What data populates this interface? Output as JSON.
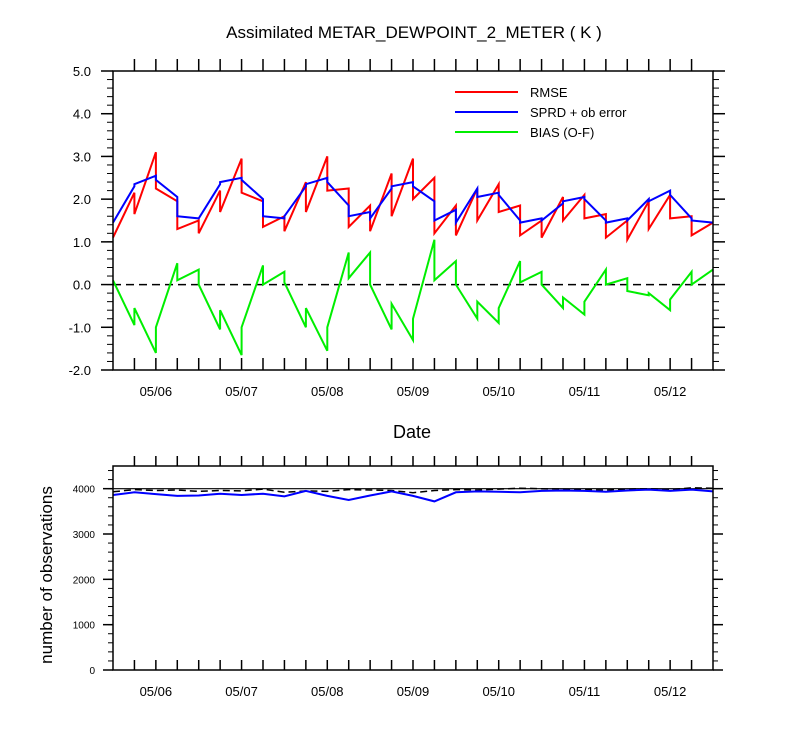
{
  "chart_data": [
    {
      "type": "line",
      "title": "Assimilated METAR_DEWPOINT_2_METER ( K )",
      "xlabel": "Date",
      "ylabel": "",
      "xticklabels": [
        "05/06",
        "05/07",
        "05/08",
        "05/09",
        "05/10",
        "05/11",
        "05/12"
      ],
      "yticklabels": [
        "-2.0",
        "-1.0",
        "0.0",
        "1.0",
        "2.0",
        "3.0",
        "4.0",
        "5.0"
      ],
      "ylim": [
        -2.0,
        5.0
      ],
      "xlim": [
        5.5,
        12.5
      ],
      "legend_position": "top-right",
      "reference_line": {
        "y": 0.0,
        "style": "dashed"
      },
      "series": [
        {
          "name": "RMSE",
          "color": "#ff0000",
          "x": [
            5.5,
            5.75,
            5.75,
            6.0,
            6.0,
            6.25,
            6.25,
            6.5,
            6.5,
            6.75,
            6.75,
            7.0,
            7.0,
            7.25,
            7.25,
            7.5,
            7.5,
            7.75,
            7.75,
            8.0,
            8.0,
            8.25,
            8.25,
            8.5,
            8.5,
            8.75,
            8.75,
            9.0,
            9.0,
            9.25,
            9.25,
            9.5,
            9.5,
            9.75,
            9.75,
            10.0,
            10.0,
            10.25,
            10.25,
            10.5,
            10.5,
            10.75,
            10.75,
            11.0,
            11.0,
            11.25,
            11.25,
            11.5,
            11.5,
            11.75,
            11.75,
            12.0,
            12.0,
            12.25,
            12.25,
            12.5
          ],
          "y": [
            1.1,
            2.15,
            1.65,
            3.1,
            2.25,
            1.95,
            1.3,
            1.5,
            1.2,
            2.2,
            1.7,
            2.95,
            2.15,
            1.95,
            1.35,
            1.6,
            1.25,
            2.4,
            1.7,
            3.0,
            2.2,
            2.25,
            1.35,
            1.85,
            1.25,
            2.6,
            1.6,
            2.95,
            2.0,
            2.5,
            1.2,
            1.85,
            1.15,
            2.25,
            1.5,
            2.35,
            1.7,
            1.85,
            1.15,
            1.5,
            1.1,
            2.05,
            1.5,
            2.1,
            1.55,
            1.65,
            1.1,
            1.5,
            1.05,
            1.95,
            1.3,
            2.1,
            1.55,
            1.6,
            1.15,
            1.45
          ]
        },
        {
          "name": "SPRD + ob error",
          "color": "#0000ff",
          "x": [
            5.5,
            5.75,
            5.75,
            6.0,
            6.0,
            6.25,
            6.25,
            6.5,
            6.5,
            6.75,
            6.75,
            7.0,
            7.0,
            7.25,
            7.25,
            7.5,
            7.5,
            7.75,
            7.75,
            8.0,
            8.0,
            8.25,
            8.25,
            8.5,
            8.5,
            8.75,
            8.75,
            9.0,
            9.0,
            9.25,
            9.25,
            9.5,
            9.5,
            9.75,
            9.75,
            10.0,
            10.0,
            10.25,
            10.25,
            10.5,
            10.5,
            10.75,
            10.75,
            11.0,
            11.0,
            11.25,
            11.25,
            11.5,
            11.5,
            11.75,
            11.75,
            12.0,
            12.0,
            12.25,
            12.25,
            12.5
          ],
          "y": [
            1.45,
            2.3,
            2.35,
            2.55,
            2.45,
            2.05,
            1.6,
            1.55,
            1.55,
            2.35,
            2.4,
            2.5,
            2.45,
            2.0,
            1.6,
            1.55,
            1.6,
            2.3,
            2.35,
            2.5,
            2.4,
            1.85,
            1.6,
            1.7,
            1.55,
            2.25,
            2.3,
            2.4,
            2.3,
            1.95,
            1.5,
            1.75,
            1.45,
            2.25,
            2.05,
            2.15,
            2.1,
            1.5,
            1.45,
            1.55,
            1.5,
            1.9,
            1.95,
            2.05,
            2.0,
            1.5,
            1.45,
            1.55,
            1.5,
            2.0,
            1.95,
            2.2,
            2.1,
            1.55,
            1.5,
            1.45
          ]
        },
        {
          "name": "BIAS (O-F)",
          "color": "#00ee00",
          "x": [
            5.5,
            5.75,
            5.75,
            6.0,
            6.0,
            6.25,
            6.25,
            6.5,
            6.5,
            6.75,
            6.75,
            7.0,
            7.0,
            7.25,
            7.25,
            7.5,
            7.5,
            7.75,
            7.75,
            8.0,
            8.0,
            8.25,
            8.25,
            8.5,
            8.5,
            8.75,
            8.75,
            9.0,
            9.0,
            9.25,
            9.25,
            9.5,
            9.5,
            9.75,
            9.75,
            10.0,
            10.0,
            10.25,
            10.25,
            10.5,
            10.5,
            10.75,
            10.75,
            11.0,
            11.0,
            11.25,
            11.25,
            11.5,
            11.5,
            11.75,
            11.75,
            12.0,
            12.0,
            12.25,
            12.25,
            12.5
          ],
          "y": [
            0.1,
            -0.95,
            -0.55,
            -1.6,
            -1.0,
            0.5,
            0.1,
            0.35,
            0.0,
            -1.05,
            -0.6,
            -1.65,
            -1.0,
            0.45,
            0.0,
            0.3,
            0.05,
            -1.0,
            -0.55,
            -1.55,
            -1.0,
            0.75,
            0.15,
            0.75,
            0.0,
            -1.05,
            -0.45,
            -1.3,
            -0.8,
            1.05,
            0.1,
            0.55,
            0.0,
            -0.8,
            -0.4,
            -0.9,
            -0.55,
            0.55,
            0.05,
            0.3,
            0.0,
            -0.55,
            -0.3,
            -0.7,
            -0.4,
            0.35,
            0.0,
            0.15,
            -0.15,
            -0.25,
            -0.2,
            -0.6,
            -0.35,
            0.3,
            0.0,
            0.35
          ]
        }
      ]
    },
    {
      "type": "line",
      "title": "",
      "xlabel": "",
      "ylabel": "number of observations",
      "xticklabels": [
        "05/06",
        "05/07",
        "05/08",
        "05/09",
        "05/10",
        "05/11",
        "05/12"
      ],
      "yticklabels": [
        "0",
        "1000",
        "2000",
        "3000",
        "4000"
      ],
      "ylim": [
        0,
        4500
      ],
      "xlim": [
        5.5,
        12.5
      ],
      "reference_line": {
        "y": 4000,
        "style": "solid"
      },
      "series": [
        {
          "style": "dashed",
          "color": "#000000",
          "x": [
            5.5,
            5.75,
            6.0,
            6.25,
            6.5,
            6.75,
            7.0,
            7.25,
            7.5,
            7.75,
            8.0,
            8.25,
            8.5,
            8.75,
            9.0,
            9.25,
            9.5,
            9.75,
            10.0,
            10.25,
            10.5,
            10.75,
            11.0,
            11.25,
            11.5,
            11.75,
            12.0,
            12.25,
            12.5
          ],
          "y": [
            3930,
            3980,
            3960,
            3970,
            3940,
            3960,
            3950,
            3990,
            3920,
            3950,
            3940,
            3980,
            3970,
            3960,
            3910,
            3960,
            3980,
            3970,
            3990,
            4010,
            4000,
            3990,
            3980,
            3970,
            3990,
            4000,
            3980,
            4020,
            4010
          ]
        },
        {
          "style": "solid",
          "color": "#0000ff",
          "x": [
            5.5,
            5.75,
            6.0,
            6.25,
            6.5,
            6.75,
            7.0,
            7.25,
            7.5,
            7.75,
            8.0,
            8.25,
            8.5,
            8.75,
            9.0,
            9.25,
            9.5,
            9.75,
            10.0,
            10.25,
            10.5,
            10.75,
            11.0,
            11.25,
            11.5,
            11.75,
            12.0,
            12.25,
            12.5
          ],
          "y": [
            3860,
            3920,
            3880,
            3840,
            3850,
            3890,
            3860,
            3890,
            3830,
            3950,
            3840,
            3750,
            3850,
            3940,
            3840,
            3720,
            3920,
            3940,
            3930,
            3920,
            3950,
            3960,
            3950,
            3930,
            3960,
            3980,
            3950,
            3980,
            3940
          ]
        }
      ]
    }
  ]
}
